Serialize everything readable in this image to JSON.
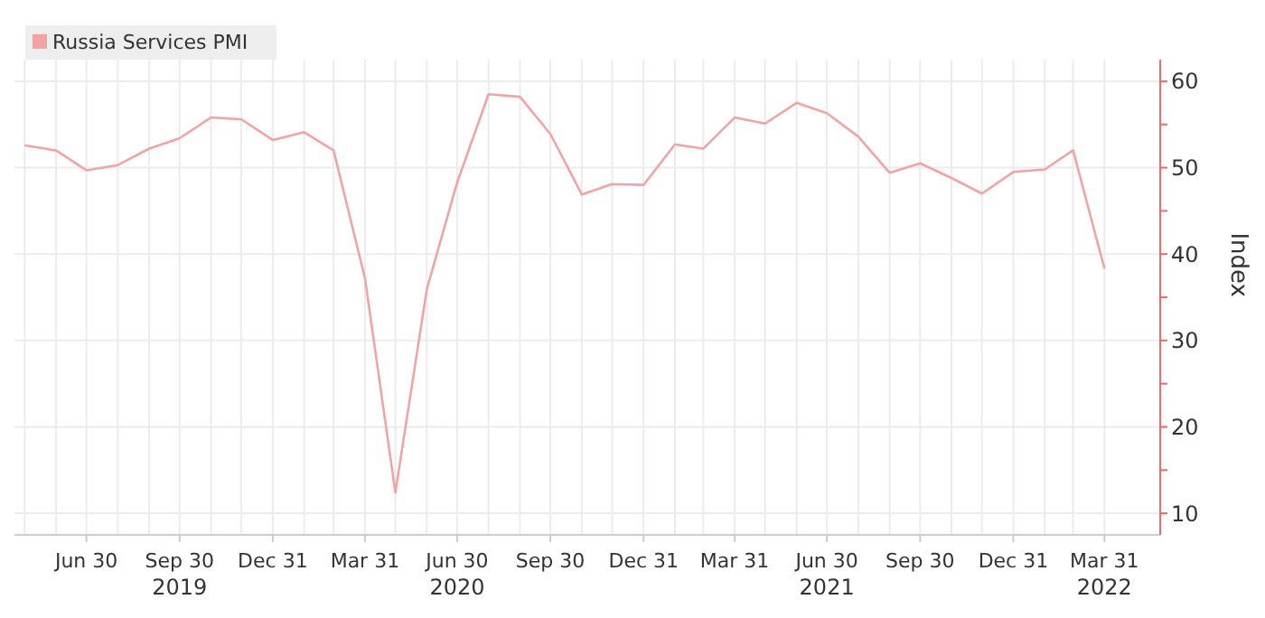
{
  "chart_data": {
    "type": "line",
    "ylabel": "Index",
    "legend": "top left",
    "grid": true,
    "marker": "none",
    "line_style": "solid",
    "x": [
      "2019-04-30",
      "2019-05-31",
      "2019-06-30",
      "2019-07-31",
      "2019-08-31",
      "2019-09-30",
      "2019-10-31",
      "2019-11-30",
      "2019-12-31",
      "2020-01-31",
      "2020-02-29",
      "2020-03-31",
      "2020-04-30",
      "2020-05-31",
      "2020-06-30",
      "2020-07-31",
      "2020-08-31",
      "2020-09-30",
      "2020-10-31",
      "2020-11-30",
      "2020-12-31",
      "2021-01-31",
      "2021-02-28",
      "2021-03-31",
      "2021-04-30",
      "2021-05-31",
      "2021-06-30",
      "2021-07-31",
      "2021-08-31",
      "2021-09-30",
      "2021-10-31",
      "2021-11-30",
      "2021-12-31",
      "2022-01-31",
      "2022-02-28",
      "2022-03-31"
    ],
    "series": [
      {
        "name": "Russia Services PMI",
        "color": "#f2a3a3",
        "values": [
          52.6,
          52.0,
          49.7,
          50.3,
          52.2,
          53.4,
          55.8,
          55.6,
          53.2,
          54.1,
          52.0,
          37.2,
          12.4,
          35.9,
          48.3,
          58.5,
          58.2,
          53.9,
          46.9,
          48.1,
          48.0,
          52.7,
          52.2,
          55.8,
          55.1,
          57.5,
          56.3,
          53.6,
          49.4,
          50.5,
          48.8,
          47.0,
          49.5,
          49.8,
          52.0,
          38.3
        ]
      }
    ],
    "xlim": [
      "2019-04-20",
      "2022-05-25"
    ],
    "xticks": [
      {
        "value": "2019-06-30",
        "label": "Jun 30"
      },
      {
        "value": "2019-09-30",
        "label": "Sep 30\n2019"
      },
      {
        "value": "2019-12-31",
        "label": "Dec 31"
      },
      {
        "value": "2020-03-31",
        "label": "Mar 31"
      },
      {
        "value": "2020-06-30",
        "label": "Jun 30\n2020"
      },
      {
        "value": "2020-09-30",
        "label": "Sep 30"
      },
      {
        "value": "2020-12-31",
        "label": "Dec 31"
      },
      {
        "value": "2021-03-31",
        "label": "Mar 31"
      },
      {
        "value": "2021-06-30",
        "label": "Jun 30\n2021"
      },
      {
        "value": "2021-09-30",
        "label": "Sep 30"
      },
      {
        "value": "2021-12-31",
        "label": "Dec 31"
      },
      {
        "value": "2022-03-31",
        "label": "Mar 31\n2022"
      }
    ],
    "ylim": [
      7.5,
      62.5
    ],
    "yticks": [
      10,
      {
        "value": 15,
        "label": null
      },
      20,
      {
        "value": 25,
        "label": null
      },
      30,
      {
        "value": 35,
        "label": null
      },
      40,
      {
        "value": 45,
        "label": null
      },
      50,
      {
        "value": 55,
        "label": null
      },
      60
    ]
  }
}
